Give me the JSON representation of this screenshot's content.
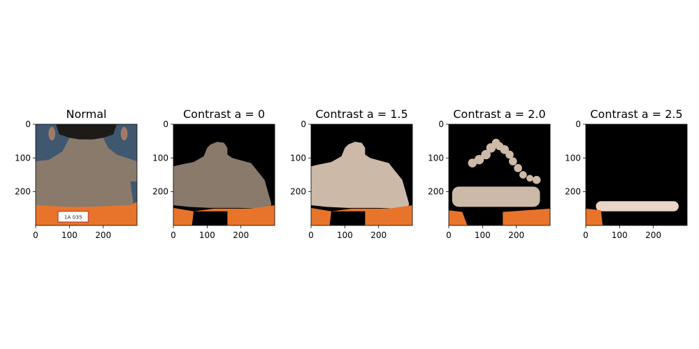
{
  "chart_data": {
    "type": "image",
    "xticks": [
      "0",
      "100",
      "200"
    ],
    "yticks": [
      "0",
      "100",
      "200"
    ],
    "xlim": [
      0,
      300
    ],
    "ylim": [
      300,
      0
    ],
    "panels": [
      {
        "title": "Normal",
        "content": "photo-back-of-neck-orange-shirt",
        "label_on_shirt": "1A 035"
      },
      {
        "title": "Contrast a = 0",
        "content": "segmented-skin-region"
      },
      {
        "title": "Contrast a = 1.5",
        "content": "segmented-skin-region"
      },
      {
        "title": "Contrast a = 2.0",
        "content": "segmented-skin-region"
      },
      {
        "title": "Contrast a = 2.5",
        "content": "segmented-skin-region"
      }
    ]
  },
  "colors": {
    "background": "#000000",
    "skin_dark": "#8a7a6c",
    "skin_light": "#cdb9a8",
    "skin_bright": "#ead6c6",
    "shirt_orange": "#e8742c",
    "photo_bg": "#3f5870",
    "hair": "#1e1a18"
  }
}
